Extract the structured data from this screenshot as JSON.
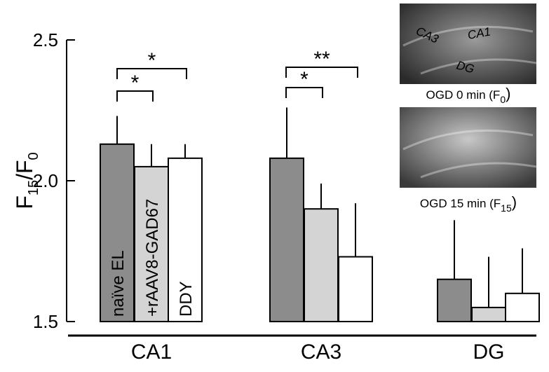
{
  "chart_data": {
    "type": "bar",
    "ylabel": [
      "F",
      "15",
      "/F",
      "0"
    ],
    "categories": [
      "CA1",
      "CA3",
      "DG"
    ],
    "series": [
      {
        "name": "naïve EL",
        "color": "#8c8c8c",
        "values": [
          2.13,
          2.08,
          1.65
        ],
        "errors": [
          0.1,
          0.18,
          0.21
        ]
      },
      {
        "name": "+rAAV8-GAD67",
        "color": "#d4d4d4",
        "values": [
          2.05,
          1.9,
          1.55
        ],
        "errors": [
          0.08,
          0.09,
          0.18
        ]
      },
      {
        "name": "DDY",
        "color": "#ffffff",
        "values": [
          2.08,
          1.73,
          1.6
        ],
        "errors": [
          0.05,
          0.19,
          0.16
        ]
      }
    ],
    "ylim": [
      1.5,
      2.5
    ],
    "yticks": [
      1.5,
      {
        "value": 2,
        "label": "2.0"
      },
      2.5
    ],
    "significance": [
      "*",
      "*",
      "*",
      "**"
    ],
    "insets": [
      {
        "caption": [
          "OGD 0 min (F",
          "0",
          ")"
        ],
        "regions": [
          "CA3",
          "CA1",
          "DG"
        ]
      },
      {
        "caption": [
          "OGD 15 min (F",
          "15",
          ")"
        ]
      }
    ]
  }
}
